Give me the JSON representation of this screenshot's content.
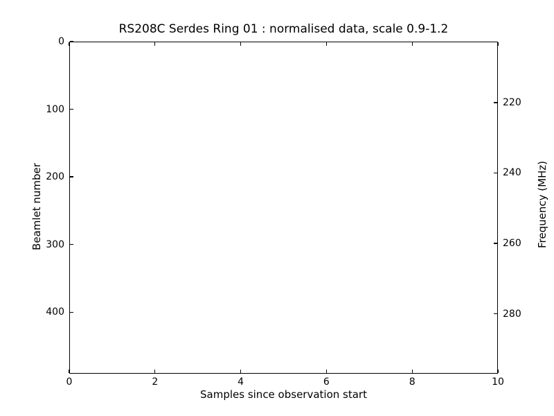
{
  "figure": {
    "background": "#ffffff",
    "frame_color": "#000000",
    "text_color": "#000000"
  },
  "chart_data": {
    "type": "heatmap",
    "title": "RS208C Serdes Ring 01 : normalised data, scale 0.9-1.2",
    "xlabel": "Samples since observation start",
    "ylabel_left": "Beamlet number",
    "ylabel_right": "Frequency (MHz)",
    "xlim": [
      0,
      10
    ],
    "ylim_left": [
      0,
      491
    ],
    "ylim_right": [
      202.7,
      297.0
    ],
    "xticks": [
      0,
      2,
      4,
      6,
      8,
      10
    ],
    "yticks_left": [
      0,
      100,
      200,
      300,
      400
    ],
    "yticks_right": [
      220,
      240,
      260,
      280
    ],
    "grid": false,
    "legend": null,
    "tick_direction": "in",
    "values": []
  }
}
